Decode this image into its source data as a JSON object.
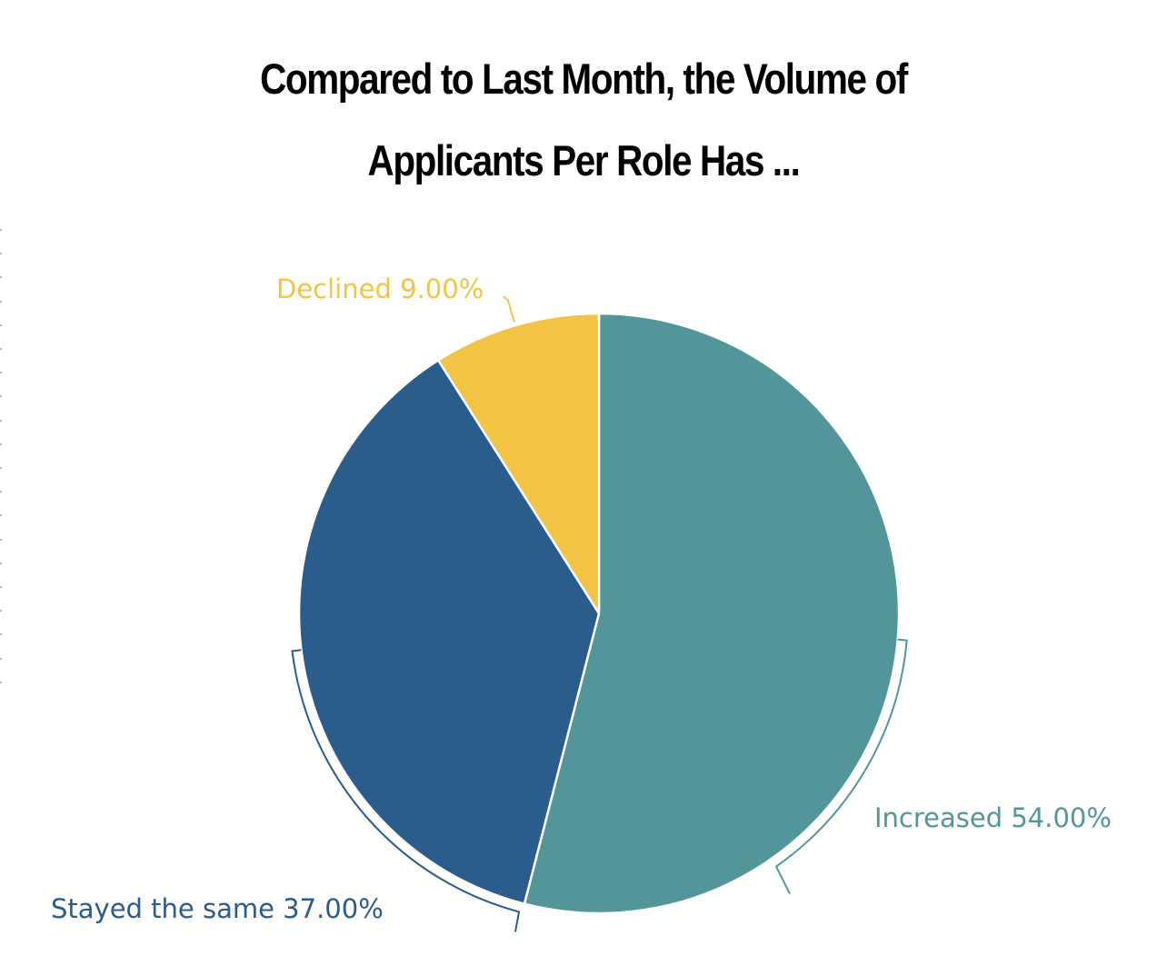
{
  "chart_data": {
    "type": "pie",
    "title": "Compared to Last Month, the Volume of Applicants Per Role Has ...",
    "title_lines": [
      "Compared to Last Month, the Volume of",
      "Applicants Per Role Has ..."
    ],
    "slices": [
      {
        "name": "Increased",
        "value": 54.0,
        "label": "Increased 54.00%",
        "color": "#52969a"
      },
      {
        "name": "Stayed the same",
        "value": 37.0,
        "label": "Stayed the same 37.00%",
        "color": "#2a5c8c"
      },
      {
        "name": "Declined",
        "value": 9.0,
        "label": "Declined 9.00%",
        "color": "#f3c443"
      }
    ],
    "legend": "none"
  }
}
